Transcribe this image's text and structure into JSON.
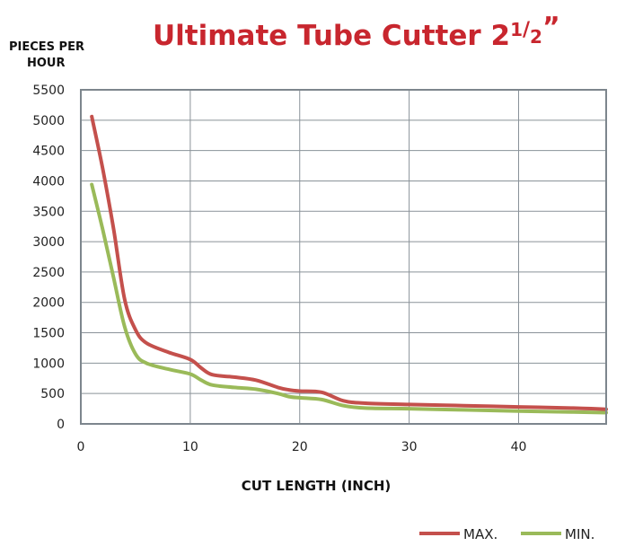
{
  "chart_data": {
    "type": "line",
    "title_main": "Ultimate Tube Cutter 2",
    "title_num": "1",
    "title_slash": "/",
    "title_den": "2",
    "title_quote": "”",
    "ylabel_line1": "PIECES  PER",
    "ylabel_line2": "HOUR",
    "xlabel": "CUT LENGTH (INCH)",
    "xlim": [
      0,
      48
    ],
    "ylim": [
      0,
      5500
    ],
    "x_ticks": [
      0,
      10,
      20,
      30,
      40
    ],
    "y_ticks": [
      0,
      500,
      1000,
      1500,
      2000,
      2500,
      3000,
      3500,
      4000,
      4500,
      5000,
      5500
    ],
    "grid": true,
    "legend_position": "bottom-right",
    "series": [
      {
        "name": "MAX.",
        "color": "#c4504c",
        "points": [
          [
            1,
            5060
          ],
          [
            2,
            4200
          ],
          [
            3,
            3200
          ],
          [
            4,
            2050
          ],
          [
            5,
            1550
          ],
          [
            6,
            1330
          ],
          [
            8,
            1180
          ],
          [
            10,
            1060
          ],
          [
            11,
            920
          ],
          [
            12,
            810
          ],
          [
            14,
            770
          ],
          [
            16,
            720
          ],
          [
            18,
            600
          ],
          [
            19,
            560
          ],
          [
            20,
            540
          ],
          [
            22,
            520
          ],
          [
            24,
            380
          ],
          [
            26,
            340
          ],
          [
            30,
            320
          ],
          [
            35,
            300
          ],
          [
            40,
            280
          ],
          [
            45,
            260
          ],
          [
            48,
            240
          ]
        ]
      },
      {
        "name": "MIN.",
        "color": "#9aba59",
        "points": [
          [
            1,
            3940
          ],
          [
            2,
            3200
          ],
          [
            3,
            2400
          ],
          [
            4,
            1600
          ],
          [
            5,
            1150
          ],
          [
            6,
            1000
          ],
          [
            8,
            900
          ],
          [
            10,
            820
          ],
          [
            11,
            720
          ],
          [
            12,
            640
          ],
          [
            14,
            600
          ],
          [
            16,
            570
          ],
          [
            18,
            500
          ],
          [
            19,
            450
          ],
          [
            20,
            430
          ],
          [
            22,
            400
          ],
          [
            24,
            300
          ],
          [
            26,
            260
          ],
          [
            30,
            250
          ],
          [
            35,
            230
          ],
          [
            40,
            210
          ],
          [
            45,
            195
          ],
          [
            48,
            185
          ]
        ]
      }
    ]
  }
}
